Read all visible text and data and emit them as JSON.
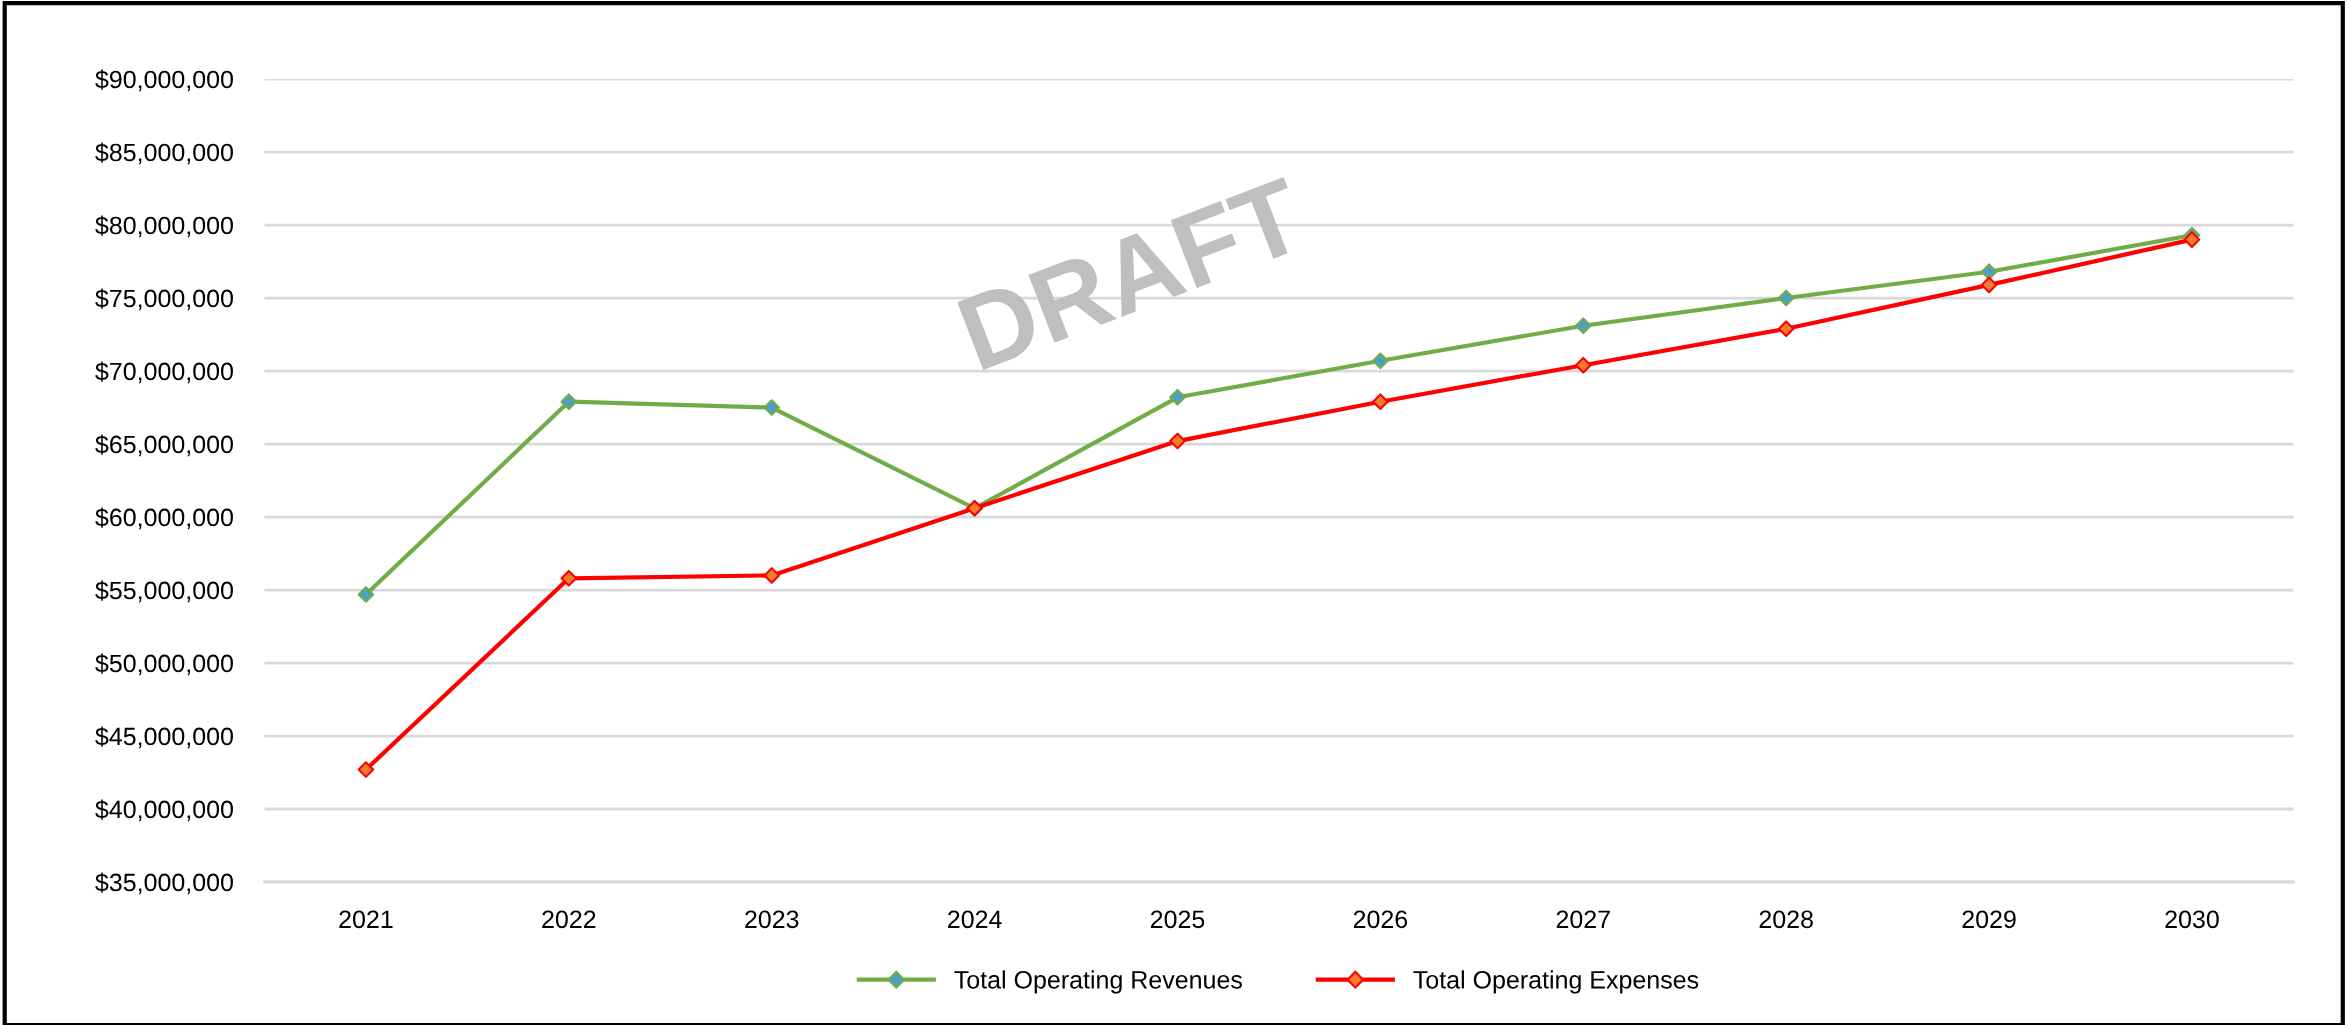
{
  "chart_data": {
    "type": "line",
    "categories": [
      "2021",
      "2022",
      "2023",
      "2024",
      "2025",
      "2026",
      "2027",
      "2028",
      "2029",
      "2030"
    ],
    "series": [
      {
        "name": "Total Operating Revenues",
        "color": "#70ad47",
        "colors": [
          "#4d9fc9",
          "#4d9fc9",
          "#4d9fc9",
          "#4d9fc9",
          "#4d9fc9",
          "#4d9fc9",
          "#4d9fc9",
          "#4d9fc9",
          "#4d9fc9",
          "#4d9fc9"
        ],
        "values": [
          54700000,
          67900000,
          67500000,
          60600000,
          68200000,
          70700000,
          73100000,
          75000000,
          76800000,
          79300000
        ]
      },
      {
        "name": "Total Operating Expenses",
        "color": "#ff0000",
        "colors": [
          "#ed7d31",
          "#ed7d31",
          "#ed7d31",
          "#ed7d31",
          "#ed7d31",
          "#ed7d31",
          "#ed7d31",
          "#ed7d31",
          "#ed7d31",
          "#ed7d31"
        ],
        "values": [
          42700000,
          55800000,
          56000000,
          60600000,
          65200000,
          67900000,
          70400000,
          72900000,
          75900000,
          79000000
        ]
      }
    ],
    "ylim": [
      35000000,
      90000000
    ],
    "yticks": [
      {
        "value": 35000000,
        "label": "$35,000,000"
      },
      {
        "value": 40000000,
        "label": "$40,000,000"
      },
      {
        "value": 45000000,
        "label": "$45,000,000"
      },
      {
        "value": 50000000,
        "label": "$50,000,000"
      },
      {
        "value": 55000000,
        "label": "$55,000,000"
      },
      {
        "value": 60000000,
        "label": "$60,000,000"
      },
      {
        "value": 65000000,
        "label": "$65,000,000"
      },
      {
        "value": 70000000,
        "label": "$70,000,000"
      },
      {
        "value": 75000000,
        "label": "$75,000,000"
      },
      {
        "value": 80000000,
        "label": "$80,000,000"
      },
      {
        "value": 85000000,
        "label": "$85,000,000"
      },
      {
        "value": 90000000,
        "label": "$90,000,000"
      }
    ],
    "grid": "y",
    "legend": "bottom",
    "marker": "diamond",
    "line_style": "solid",
    "annotations": [
      "DRAFT"
    ]
  }
}
